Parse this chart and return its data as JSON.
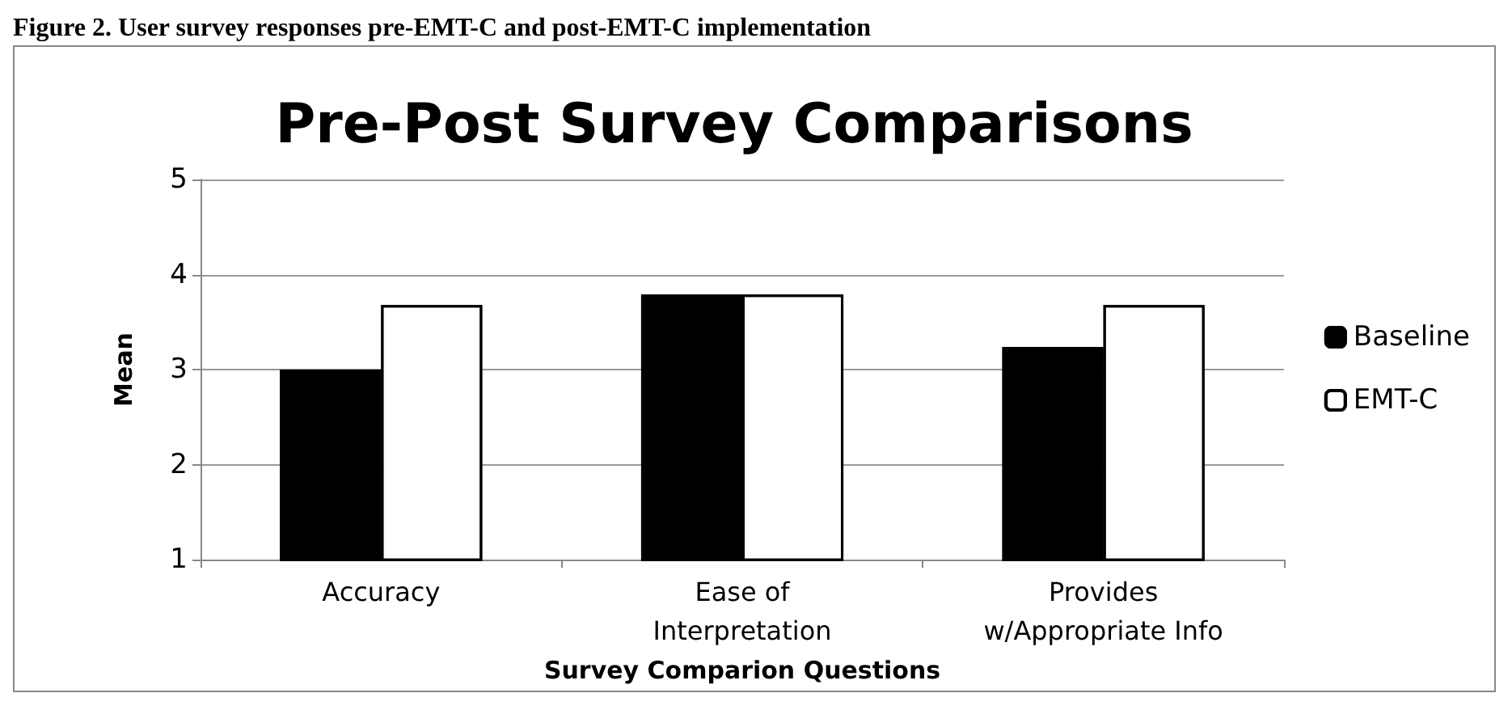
{
  "chart_data": {
    "type": "bar",
    "title": "Pre-Post Survey Comparisons",
    "xlabel": "Survey Comparion Questions",
    "ylabel": "Mean",
    "annotations": [
      "Figure 2. User survey responses pre-EMT-C and post-EMT-C implementation"
    ],
    "categories": [
      "Accuracy",
      "Ease of\nInterpretation",
      "Provides\nw/Appropriate Info"
    ],
    "series": [
      {
        "name": "Baseline",
        "color": "#000000",
        "values": [
          3.0,
          3.79,
          3.24
        ]
      },
      {
        "name": "EMT-C",
        "color": "#ffffff",
        "values": [
          3.68,
          3.79,
          3.68
        ]
      }
    ],
    "ylim": [
      1,
      5
    ],
    "yticks": [
      1,
      2,
      3,
      4,
      5
    ],
    "grid": "y",
    "legend": "right"
  }
}
